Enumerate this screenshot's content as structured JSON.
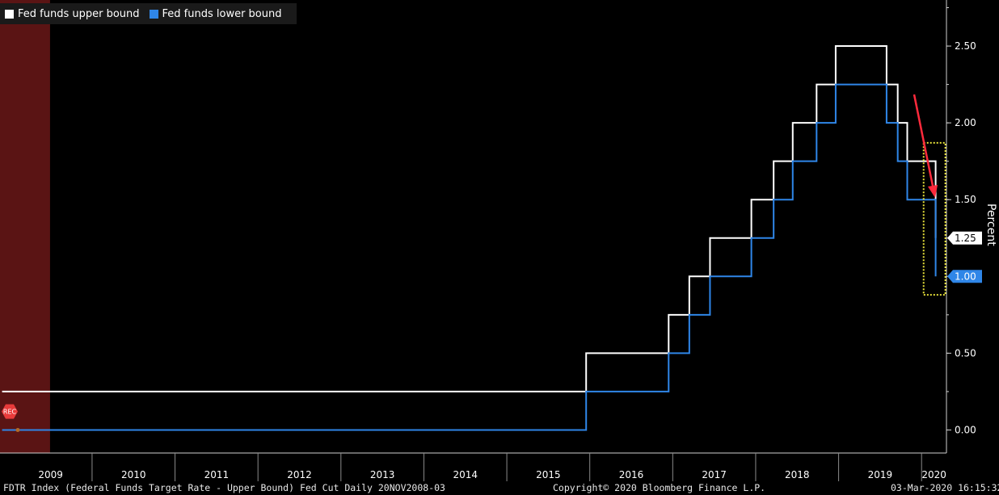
{
  "chart_data": {
    "type": "line",
    "ylabel": "Percent",
    "ylim": [
      -0.15,
      2.8
    ],
    "xlim": [
      2008.89,
      2020.3
    ],
    "y_ticks": [
      0.0,
      0.5,
      1.5,
      2.0,
      2.5
    ],
    "y_tick_labels": [
      "0.00",
      "0.50",
      "1.50",
      "2.00",
      "2.50"
    ],
    "x_ticks": [
      "2009",
      "2010",
      "2011",
      "2012",
      "2013",
      "2014",
      "2015",
      "2016",
      "2017",
      "2018",
      "2019",
      "2020"
    ],
    "legend_position": "top-left",
    "series": [
      {
        "name": "Fed funds upper bound",
        "color": "#ffffff",
        "last_value_label": "1.25",
        "steps": [
          [
            "2008-12-01",
            0.25
          ],
          [
            "2015-12-16",
            0.5
          ],
          [
            "2016-12-14",
            0.75
          ],
          [
            "2017-03-15",
            1.0
          ],
          [
            "2017-06-14",
            1.25
          ],
          [
            "2017-12-13",
            1.5
          ],
          [
            "2018-03-21",
            1.75
          ],
          [
            "2018-06-13",
            2.0
          ],
          [
            "2018-09-26",
            2.25
          ],
          [
            "2018-12-19",
            2.5
          ],
          [
            "2019-07-31",
            2.25
          ],
          [
            "2019-09-18",
            2.0
          ],
          [
            "2019-10-30",
            1.75
          ],
          [
            "2020-03-03",
            1.25
          ]
        ]
      },
      {
        "name": "Fed funds lower bound",
        "color": "#2f86e8",
        "last_value_label": "1.00",
        "steps": [
          [
            "2008-12-01",
            0.0
          ],
          [
            "2015-12-16",
            0.25
          ],
          [
            "2016-12-14",
            0.5
          ],
          [
            "2017-03-15",
            0.75
          ],
          [
            "2017-06-14",
            1.0
          ],
          [
            "2017-12-13",
            1.25
          ],
          [
            "2018-03-21",
            1.5
          ],
          [
            "2018-06-13",
            1.75
          ],
          [
            "2018-09-26",
            2.0
          ],
          [
            "2018-12-19",
            2.25
          ],
          [
            "2019-07-31",
            2.0
          ],
          [
            "2019-09-18",
            1.75
          ],
          [
            "2019-10-30",
            1.5
          ],
          [
            "2020-03-03",
            1.0
          ]
        ]
      }
    ],
    "recession_band": [
      "2008-11-20",
      "2009-06-30"
    ],
    "recession_marker_label": "REC",
    "highlight_box": [
      "2020-01-10",
      "2020-04-15",
      0.88,
      1.87
    ],
    "annotation_arrow": "down",
    "annotation_color": "#ff2a3c",
    "highlight_color": "#e8e23a"
  },
  "footer": {
    "left": "FDTR Index (Federal Funds Target Rate - Upper Bound) Fed Cut  Daily 20NOV2008-03",
    "center": "Copyright© 2020 Bloomberg Finance L.P.",
    "right": "03-Mar-2020 16:15:32"
  }
}
